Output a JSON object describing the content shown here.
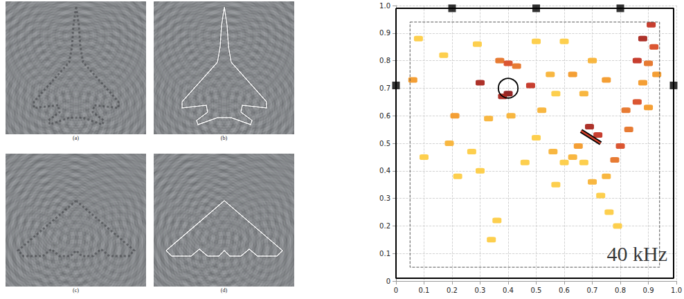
{
  "panels": {
    "labels": [
      "(a)",
      "(b)",
      "(c)",
      "(d)"
    ]
  },
  "chart_data": {
    "type": "scatter",
    "xlim": [
      0,
      1
    ],
    "ylim": [
      0,
      1
    ],
    "xticks": [
      0,
      0.1,
      0.2,
      0.3,
      0.4,
      0.5,
      0.6,
      0.7,
      0.8,
      0.9,
      {
        "value": 1,
        "label": "1.0"
      }
    ],
    "yticks": [
      0,
      0.1,
      0.2,
      0.3,
      0.4,
      0.5,
      0.6,
      0.7,
      0.8,
      0.9,
      {
        "value": 1,
        "label": "1.0"
      }
    ],
    "grid": true,
    "annotations": [
      {
        "text": "40 kHz",
        "x": 0.86,
        "y": 0.1
      }
    ],
    "spots": {
      "x": [
        0.3,
        0.37,
        0.4,
        0.43,
        0.48,
        0.4,
        0.38,
        0.21,
        0.19,
        0.27,
        0.33,
        0.41,
        0.52,
        0.46,
        0.3,
        0.22,
        0.57,
        0.5,
        0.56,
        0.6,
        0.69,
        0.72,
        0.65,
        0.63,
        0.67,
        0.7,
        0.75,
        0.78,
        0.8,
        0.83,
        0.82,
        0.86,
        0.9,
        0.88,
        0.9,
        0.86,
        0.88,
        0.91,
        0.92,
        0.93,
        0.75,
        0.67,
        0.7,
        0.6,
        0.5,
        0.29,
        0.17,
        0.08,
        0.06,
        0.76,
        0.79,
        0.73,
        0.36,
        0.34,
        0.1,
        0.55,
        0.63,
        0.57
      ],
      "y": [
        0.72,
        0.8,
        0.79,
        0.78,
        0.71,
        0.68,
        0.67,
        0.6,
        0.5,
        0.47,
        0.59,
        0.6,
        0.62,
        0.43,
        0.4,
        0.38,
        0.35,
        0.52,
        0.47,
        0.43,
        0.56,
        0.53,
        0.49,
        0.45,
        0.43,
        0.36,
        0.38,
        0.44,
        0.49,
        0.55,
        0.62,
        0.65,
        0.63,
        0.72,
        0.79,
        0.8,
        0.88,
        0.93,
        0.85,
        0.75,
        0.73,
        0.68,
        0.8,
        0.87,
        0.87,
        0.86,
        0.82,
        0.88,
        0.73,
        0.25,
        0.2,
        0.31,
        0.22,
        0.15,
        0.45,
        0.75,
        0.75,
        0.68
      ],
      "values": [
        0.9,
        0.6,
        0.7,
        0.6,
        0.8,
        1.0,
        0.9,
        0.5,
        0.4,
        0.3,
        0.4,
        0.4,
        0.4,
        0.3,
        0.3,
        0.3,
        0.3,
        0.3,
        0.4,
        0.3,
        0.9,
        0.8,
        0.5,
        0.4,
        0.3,
        0.4,
        0.4,
        0.6,
        0.7,
        0.6,
        0.6,
        0.7,
        0.5,
        0.5,
        0.6,
        0.8,
        0.9,
        0.8,
        0.7,
        0.5,
        0.5,
        0.4,
        0.4,
        0.3,
        0.3,
        0.3,
        0.3,
        0.3,
        0.5,
        0.3,
        0.3,
        0.3,
        0.3,
        0.3,
        0.3,
        0.4,
        0.5,
        0.3
      ],
      "color_range": [
        0,
        1
      ]
    },
    "frame": {
      "x": [
        0,
        0.99,
        0.99,
        0,
        0
      ],
      "y": [
        0.99,
        0.99,
        0.01,
        0.01,
        0.99
      ]
    },
    "sensors": {
      "x": [
        0.2,
        0.5,
        0.8,
        0,
        0.99
      ],
      "y": [
        0.99,
        0.99,
        0.99,
        0.71,
        0.71
      ]
    },
    "region": {
      "x": [
        0.05,
        0.94,
        0.94,
        0.05,
        0.05
      ],
      "y": [
        0.94,
        0.94,
        0.05,
        0.05,
        0.94
      ]
    },
    "scatterer": {
      "x": 0.4,
      "y": 0.7,
      "radius": 0.035
    },
    "crack": {
      "x": [
        0.66,
        0.73
      ],
      "y": [
        0.545,
        0.5
      ]
    }
  }
}
